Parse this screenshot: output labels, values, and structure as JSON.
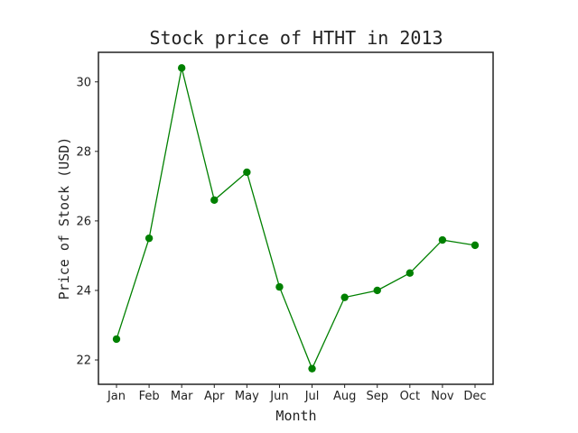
{
  "chart_data": {
    "type": "line",
    "title": "Stock price of HTHT in 2013",
    "xlabel": "Month",
    "ylabel": "Price of Stock (USD)",
    "categories": [
      "Jan",
      "Feb",
      "Mar",
      "Apr",
      "May",
      "Jun",
      "Jul",
      "Aug",
      "Sep",
      "Oct",
      "Nov",
      "Dec"
    ],
    "series": [
      {
        "values": [
          22.6,
          25.5,
          30.4,
          26.6,
          27.4,
          24.1,
          21.75,
          23.8,
          24.0,
          24.5,
          25.45,
          25.3
        ],
        "color": "#008000",
        "marker": "circle"
      }
    ],
    "ylim": [
      21.3,
      30.85
    ],
    "yticks": [
      22,
      24,
      26,
      28,
      30
    ],
    "grid": false,
    "legend": false
  }
}
